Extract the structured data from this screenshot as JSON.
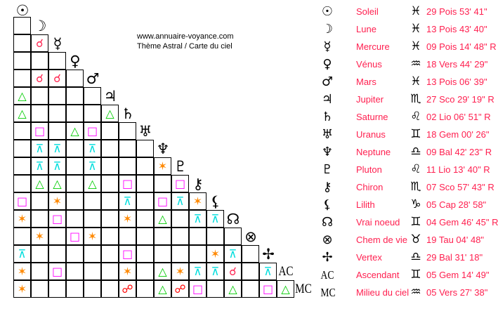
{
  "credit": {
    "site": "www.annuaire-voyance.com",
    "subtitle": "Thème Astral / Carte du ciel"
  },
  "colors": {
    "text": "#ff1f4f",
    "conjunction": "#ff2a55",
    "trine": "#00cc00",
    "square": "#ff00ff",
    "sextile": "#ff8800",
    "quincunx": "#00dddd",
    "opposition": "#ff0000"
  },
  "aspect_icons": {
    "c": "conjunction-icon",
    "t": "trine-icon",
    "q": "square-icon",
    "s": "sextile-icon",
    "x": "quincunx-icon",
    "o": "opposition-icon"
  },
  "bodies": [
    {
      "icon": "sun-icon",
      "name": "Soleil",
      "sign_icon": "pisces-icon",
      "position": "29 Pois 53' 41\""
    },
    {
      "icon": "moon-icon",
      "name": "Lune",
      "sign_icon": "pisces-icon",
      "position": "13 Pois 43' 40\""
    },
    {
      "icon": "mercury-icon",
      "name": "Mercure",
      "sign_icon": "pisces-icon",
      "position": "09 Pois 14' 48\" R"
    },
    {
      "icon": "venus-icon",
      "name": "Vénus",
      "sign_icon": "aquarius-icon",
      "position": "18 Vers 44' 29\""
    },
    {
      "icon": "mars-icon",
      "name": "Mars",
      "sign_icon": "pisces-icon",
      "position": "13 Pois 06' 39\""
    },
    {
      "icon": "jupiter-icon",
      "name": "Jupiter",
      "sign_icon": "scorpio-icon",
      "position": "27 Sco 29' 19\" R"
    },
    {
      "icon": "saturn-icon",
      "name": "Saturne",
      "sign_icon": "leo-icon",
      "position": "02 Lio 06' 51\" R"
    },
    {
      "icon": "uranus-icon",
      "name": "Uranus",
      "sign_icon": "gemini-icon",
      "position": "18 Gem 00' 26\""
    },
    {
      "icon": "neptune-icon",
      "name": "Neptune",
      "sign_icon": "libra-icon",
      "position": "09 Bal 42' 23\" R"
    },
    {
      "icon": "pluto-icon",
      "name": "Pluton",
      "sign_icon": "leo-icon",
      "position": "11 Lio 13' 40\" R"
    },
    {
      "icon": "chiron-icon",
      "name": "Chiron",
      "sign_icon": "scorpio-icon",
      "position": "07 Sco 57' 43\" R"
    },
    {
      "icon": "lilith-icon",
      "name": "Lilith",
      "sign_icon": "capricorn-icon",
      "position": "05 Cap 28' 58\""
    },
    {
      "icon": "node-icon",
      "name": "Vrai noeud",
      "sign_icon": "gemini-icon",
      "position": "04 Gem 46' 45\" R"
    },
    {
      "icon": "part-of-fortune-icon",
      "name": "Chem de vie",
      "sign_icon": "taurus-icon",
      "position": "19 Tau 04' 48\""
    },
    {
      "icon": "vertex-icon",
      "name": "Vertex",
      "sign_icon": "libra-icon",
      "position": "29 Bal 31' 18\""
    },
    {
      "icon": "ascendant-icon",
      "label": "AC",
      "name": "Ascendant",
      "sign_icon": "gemini-icon",
      "position": "05 Gem 14' 49\""
    },
    {
      "icon": "midheaven-icon",
      "label": "MC",
      "name": "Milieu du ciel",
      "sign_icon": "aquarius-icon",
      "position": "05 Vers 27' 38\""
    }
  ],
  "aspect_grid": [
    "-",
    "-c",
    "---",
    "-cc-",
    "t----",
    "t----t",
    "-q-tq--",
    "-xx-x---",
    "-xx-x---s",
    "-tt-t-q--q",
    "q-s---x-qxs",
    "s-q---s-t-xx",
    "-s-qs--------",
    "x-----q----sx-",
    "s-q---s-tsxxc-x",
    "s-----o-toq-t-qt"
  ]
}
